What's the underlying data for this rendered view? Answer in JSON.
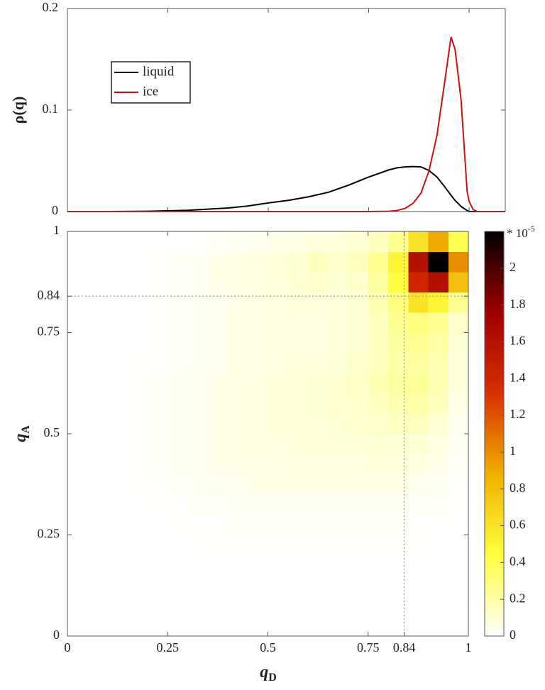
{
  "chart_data": [
    {
      "type": "line",
      "y_label": "ρ(q)",
      "x": [
        0,
        0.1,
        0.2,
        0.3,
        0.4,
        0.45,
        0.5,
        0.55,
        0.6,
        0.65,
        0.7,
        0.75,
        0.8,
        0.82,
        0.84,
        0.86,
        0.88,
        0.9,
        0.92,
        0.94,
        0.955,
        0.965,
        0.98,
        0.995,
        1.0,
        1.01,
        1.02,
        1.09
      ],
      "series": [
        {
          "name": "liquid",
          "color": "#000000",
          "values": [
            0,
            0,
            0.0003,
            0.0012,
            0.0035,
            0.0055,
            0.0085,
            0.011,
            0.0145,
            0.019,
            0.026,
            0.034,
            0.041,
            0.043,
            0.044,
            0.0443,
            0.044,
            0.0405,
            0.034,
            0.024,
            0.016,
            0.011,
            0.005,
            0.001,
            0,
            0,
            0,
            0
          ]
        },
        {
          "name": "ice",
          "color": "#cc1111",
          "values": [
            0,
            0,
            0,
            0,
            0,
            0,
            0,
            0,
            0,
            0,
            0,
            0,
            0.0003,
            0.001,
            0.003,
            0.008,
            0.018,
            0.04,
            0.075,
            0.13,
            0.172,
            0.16,
            0.11,
            0.02,
            0.01,
            0.002,
            0,
            0
          ]
        }
      ],
      "xlim": [
        0,
        1.09
      ],
      "xticks": [
        0,
        0.25,
        0.5,
        0.75,
        1
      ],
      "ylim": [
        0,
        0.2
      ],
      "yticks": [
        0,
        0.1,
        0.2
      ],
      "legend": "upper left"
    },
    {
      "type": "heatmap",
      "x_label": "q",
      "x_label_subscript": "D",
      "y_label": "q",
      "y_label_subscript": "A",
      "xbins": [
        0,
        0.05,
        0.1,
        0.15,
        0.2,
        0.25,
        0.3,
        0.35,
        0.4,
        0.45,
        0.5,
        0.55,
        0.6,
        0.65,
        0.7,
        0.75,
        0.8,
        0.85,
        0.9,
        0.95,
        1
      ],
      "ybins": [
        0,
        0.05,
        0.1,
        0.15,
        0.2,
        0.25,
        0.3,
        0.35,
        0.4,
        0.45,
        0.5,
        0.55,
        0.6,
        0.65,
        0.7,
        0.75,
        0.8,
        0.85,
        0.9,
        0.95,
        1
      ],
      "z": [
        [
          0,
          0,
          0,
          0,
          0,
          0,
          0,
          0,
          0,
          0,
          0,
          0,
          0,
          0,
          0,
          0,
          0,
          0,
          0,
          0
        ],
        [
          0,
          0,
          0,
          0,
          0,
          0,
          0,
          0,
          0,
          0,
          0,
          0,
          0,
          0,
          0,
          0,
          0,
          0,
          0,
          0
        ],
        [
          0,
          0,
          0,
          0,
          0,
          0,
          0,
          0,
          0,
          0,
          0,
          0,
          0,
          0,
          0,
          0,
          0,
          0,
          0,
          0
        ],
        [
          0,
          0,
          0,
          0,
          0,
          0,
          0,
          0,
          0,
          0,
          0,
          0,
          0,
          0,
          0,
          0,
          0,
          0,
          0,
          0
        ],
        [
          0,
          0,
          0,
          0,
          0,
          0,
          0.01,
          0.01,
          0.01,
          0.01,
          0.01,
          0.01,
          0.01,
          0.01,
          0.01,
          0.01,
          0.01,
          0.01,
          0,
          0
        ],
        [
          0,
          0,
          0,
          0,
          0,
          0.01,
          0.01,
          0.01,
          0.02,
          0.02,
          0.02,
          0.02,
          0.02,
          0.02,
          0.02,
          0.02,
          0.02,
          0.01,
          0.01,
          0
        ],
        [
          0,
          0,
          0,
          0,
          0.01,
          0.01,
          0.02,
          0.02,
          0.03,
          0.03,
          0.03,
          0.03,
          0.03,
          0.03,
          0.03,
          0.03,
          0.03,
          0.02,
          0.02,
          0.01
        ],
        [
          0,
          0,
          0,
          0.01,
          0.01,
          0.02,
          0.03,
          0.04,
          0.04,
          0.05,
          0.05,
          0.05,
          0.05,
          0.05,
          0.05,
          0.05,
          0.05,
          0.04,
          0.03,
          0.01
        ],
        [
          0,
          0,
          0,
          0.01,
          0.02,
          0.03,
          0.04,
          0.05,
          0.05,
          0.06,
          0.06,
          0.07,
          0.07,
          0.07,
          0.07,
          0.08,
          0.08,
          0.07,
          0.05,
          0.02
        ],
        [
          0,
          0,
          0,
          0.01,
          0.02,
          0.03,
          0.04,
          0.05,
          0.06,
          0.07,
          0.07,
          0.08,
          0.08,
          0.09,
          0.09,
          0.1,
          0.1,
          0.1,
          0.07,
          0.03
        ],
        [
          0,
          0,
          0,
          0.01,
          0.02,
          0.03,
          0.04,
          0.05,
          0.06,
          0.07,
          0.08,
          0.09,
          0.09,
          0.1,
          0.11,
          0.12,
          0.14,
          0.14,
          0.1,
          0.04
        ],
        [
          0,
          0,
          0,
          0.01,
          0.02,
          0.03,
          0.04,
          0.05,
          0.06,
          0.07,
          0.08,
          0.09,
          0.1,
          0.11,
          0.12,
          0.15,
          0.18,
          0.2,
          0.15,
          0.06
        ],
        [
          0,
          0,
          0,
          0.01,
          0.02,
          0.03,
          0.04,
          0.05,
          0.06,
          0.07,
          0.08,
          0.09,
          0.1,
          0.11,
          0.13,
          0.17,
          0.22,
          0.24,
          0.18,
          0.08
        ],
        [
          0,
          0,
          0,
          0.01,
          0.01,
          0.02,
          0.03,
          0.04,
          0.05,
          0.06,
          0.07,
          0.08,
          0.08,
          0.09,
          0.12,
          0.15,
          0.2,
          0.22,
          0.18,
          0.08
        ],
        [
          0,
          0,
          0,
          0,
          0.01,
          0.02,
          0.03,
          0.04,
          0.05,
          0.06,
          0.07,
          0.07,
          0.07,
          0.08,
          0.1,
          0.14,
          0.22,
          0.25,
          0.2,
          0.1
        ],
        [
          0,
          0,
          0,
          0,
          0.01,
          0.02,
          0.03,
          0.04,
          0.05,
          0.06,
          0.07,
          0.07,
          0.07,
          0.08,
          0.1,
          0.15,
          0.25,
          0.3,
          0.25,
          0.12
        ],
        [
          0,
          0,
          0,
          0,
          0.01,
          0.02,
          0.03,
          0.04,
          0.05,
          0.06,
          0.07,
          0.08,
          0.08,
          0.08,
          0.1,
          0.18,
          0.3,
          0.6,
          0.5,
          0.25
        ],
        [
          0,
          0,
          0,
          0,
          0.01,
          0.02,
          0.03,
          0.05,
          0.06,
          0.07,
          0.08,
          0.1,
          0.12,
          0.1,
          0.12,
          0.22,
          0.45,
          1.4,
          1.6,
          0.8
        ],
        [
          0,
          0,
          0,
          0,
          0.01,
          0.02,
          0.03,
          0.05,
          0.06,
          0.07,
          0.08,
          0.1,
          0.15,
          0.12,
          0.15,
          0.25,
          0.5,
          1.6,
          2.2,
          1.0
        ],
        [
          0,
          0,
          0,
          0,
          0,
          0,
          0.01,
          0.02,
          0.03,
          0.04,
          0.05,
          0.06,
          0.08,
          0.08,
          0.1,
          0.15,
          0.25,
          0.6,
          0.9,
          0.4
        ]
      ],
      "xlim": [
        0,
        1
      ],
      "xticks": [
        0,
        0.25,
        0.5,
        0.75,
        0.84,
        1
      ],
      "ylim": [
        0,
        1
      ],
      "yticks": [
        0,
        0.25,
        0.5,
        0.75,
        0.84,
        1
      ],
      "reference_lines": {
        "x": 0.84,
        "y": 0.84
      },
      "colormap": [
        "#ffffff",
        "#ffff40",
        "#f0b000",
        "#d83000",
        "#a00000",
        "#000000"
      ],
      "zlim": [
        0,
        2.2
      ],
      "zticks": [
        0,
        0.2,
        0.4,
        0.6,
        0.8,
        1,
        1.2,
        1.4,
        1.6,
        1.8,
        2
      ],
      "colorbar_label": "* 10",
      "colorbar_exponent": "-5"
    }
  ]
}
